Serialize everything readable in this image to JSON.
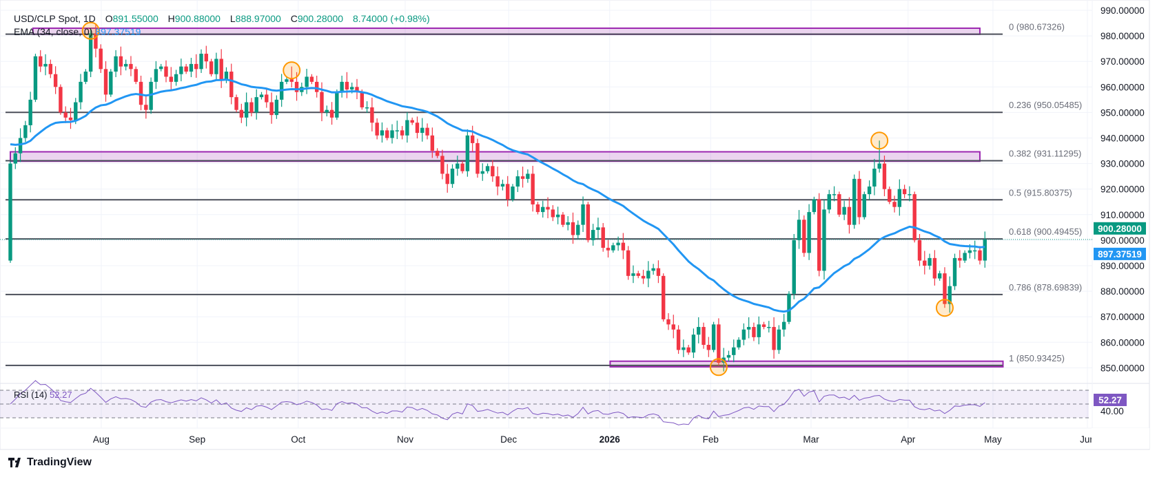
{
  "header": {
    "symbol": "USD/CLP Spot, 1D",
    "o_label": "O",
    "o": "891.55000",
    "h_label": "H",
    "h": "900.88000",
    "l_label": "L",
    "l": "888.97000",
    "c_label": "C",
    "c": "900.28000",
    "change": "8.74000 (+0.98%)",
    "ema_label": "EMA (34, close, 0)",
    "ema_value": "897.37519"
  },
  "rsi": {
    "label": "RSI (14)",
    "value": "52.27",
    "axis_tick": "40.00",
    "upper": 70,
    "middle": 50,
    "lower": 30
  },
  "branding": {
    "logo_text": "TradingView"
  },
  "colors": {
    "up": "#089981",
    "down": "#f23645",
    "ema": "#2196f3",
    "rsi": "#7e57c2",
    "zone": "#9c27b0",
    "fib": "#4a4e59",
    "circle": "#ff9800"
  },
  "chart_data": {
    "type": "candlestick",
    "title": "USD/CLP Spot, 1D",
    "ylim": [
      845,
      992
    ],
    "y_ticks": [
      "990.00000",
      "980.00000",
      "970.00000",
      "960.00000",
      "950.00000",
      "940.00000",
      "930.00000",
      "920.00000",
      "910.00000",
      "900.00000",
      "890.00000",
      "880.00000",
      "870.00000",
      "860.00000",
      "850.00000"
    ],
    "y_tick_values": [
      990,
      980,
      970,
      960,
      950,
      940,
      930,
      920,
      910,
      900,
      890,
      880,
      870,
      860,
      850
    ],
    "x_ticks": [
      {
        "label": "Aug",
        "bar": 18.1
      },
      {
        "label": "Sep",
        "bar": 37.2
      },
      {
        "label": "Oct",
        "bar": 57.3
      },
      {
        "label": "Nov",
        "bar": 78.6
      },
      {
        "label": "Dec",
        "bar": 99.2
      },
      {
        "label": "2026",
        "bar": 119.3
      },
      {
        "label": "Feb",
        "bar": 139.4
      },
      {
        "label": "Mar",
        "bar": 159.4
      },
      {
        "label": "Apr",
        "bar": 178.7
      },
      {
        "label": "May",
        "bar": 195.6
      },
      {
        "label": "Jun",
        "bar": 214.4
      }
    ],
    "first_open": 892,
    "closes": [
      930,
      934,
      940,
      945,
      955,
      972,
      968,
      969,
      965,
      960,
      950,
      948,
      947,
      954,
      962,
      966,
      981,
      975,
      967,
      957,
      966,
      972,
      968,
      969,
      967,
      962,
      953,
      951,
      962,
      967,
      968,
      964,
      962,
      965,
      968,
      966,
      969,
      967,
      973,
      970,
      965,
      971,
      963,
      966,
      956,
      951,
      948,
      954,
      950,
      956,
      957,
      954,
      949,
      955,
      962,
      963,
      962,
      958,
      960,
      964,
      962,
      958,
      950,
      951,
      948,
      958,
      962,
      959,
      960,
      958,
      952,
      952,
      946,
      941,
      943,
      940,
      943,
      943,
      941,
      947,
      946,
      942,
      944,
      941,
      935,
      933,
      926,
      922,
      928,
      930,
      927,
      941,
      938,
      926,
      927,
      929,
      925,
      921,
      922,
      916,
      921,
      925,
      924,
      926,
      914,
      911,
      913,
      912,
      909,
      910,
      906,
      907,
      902,
      906,
      914,
      900,
      904,
      905,
      897,
      896,
      898,
      899,
      896,
      886,
      887,
      886,
      885,
      888,
      889,
      886,
      869,
      867,
      865,
      857,
      858,
      856,
      863,
      866,
      859,
      857,
      867,
      852,
      854,
      855,
      858,
      861,
      865,
      866,
      862,
      867,
      866,
      866,
      857,
      865,
      868,
      879,
      900,
      908,
      895,
      911,
      916,
      888,
      912,
      918,
      918,
      910,
      913,
      906,
      924,
      909,
      918,
      921,
      928,
      930,
      920,
      915,
      913,
      920,
      918,
      918,
      900,
      892,
      890,
      893,
      885,
      887,
      875,
      882,
      893,
      892,
      895,
      896,
      896,
      892,
      900.28
    ],
    "extremes": [
      {
        "bar": 16,
        "high": 983
      },
      {
        "bar": 56,
        "high": 968
      },
      {
        "bar": 141,
        "low": 851
      },
      {
        "bar": 173,
        "high": 939
      },
      {
        "bar": 186,
        "low": 873.5
      }
    ],
    "ema": {
      "period": 34,
      "seed": 938,
      "last": 897.37519
    },
    "current_price": {
      "value": 900.28,
      "label": "900.28000"
    },
    "ema_price": {
      "value": 897.37519,
      "label": "897.37519"
    },
    "fib_levels": [
      {
        "ratio": "0",
        "price": 980.67326,
        "label": "0 (980.67326)"
      },
      {
        "ratio": "0.236",
        "price": 950.05485,
        "label": "0.236 (950.05485)"
      },
      {
        "ratio": "0.382",
        "price": 931.11295,
        "label": "0.382 (931.11295)"
      },
      {
        "ratio": "0.5",
        "price": 915.80375,
        "label": "0.5 (915.80375)"
      },
      {
        "ratio": "0.618",
        "price": 900.49455,
        "label": "0.618 (900.49455)"
      },
      {
        "ratio": "0.786",
        "price": 878.69839,
        "label": "0.786 (878.69839)"
      },
      {
        "ratio": "1",
        "price": 850.93425,
        "label": "1 (850.93425)"
      }
    ],
    "zones": [
      {
        "from_bar": 4.5,
        "to_bar": 193,
        "top": 983.0,
        "bottom": 980.6
      },
      {
        "from_bar": 0,
        "to_bar": 193,
        "top": 934.6,
        "bottom": 930.9
      },
      {
        "from_bar": 119.4,
        "to_bar": 197.6,
        "top": 852.6,
        "bottom": 850.4
      }
    ],
    "markers": [
      {
        "bar": 16,
        "price": 982
      },
      {
        "bar": 56,
        "price": 966.5
      },
      {
        "bar": 141,
        "price": 850.3
      },
      {
        "bar": 173,
        "price": 939
      },
      {
        "bar": 186,
        "price": 873.5
      }
    ]
  }
}
